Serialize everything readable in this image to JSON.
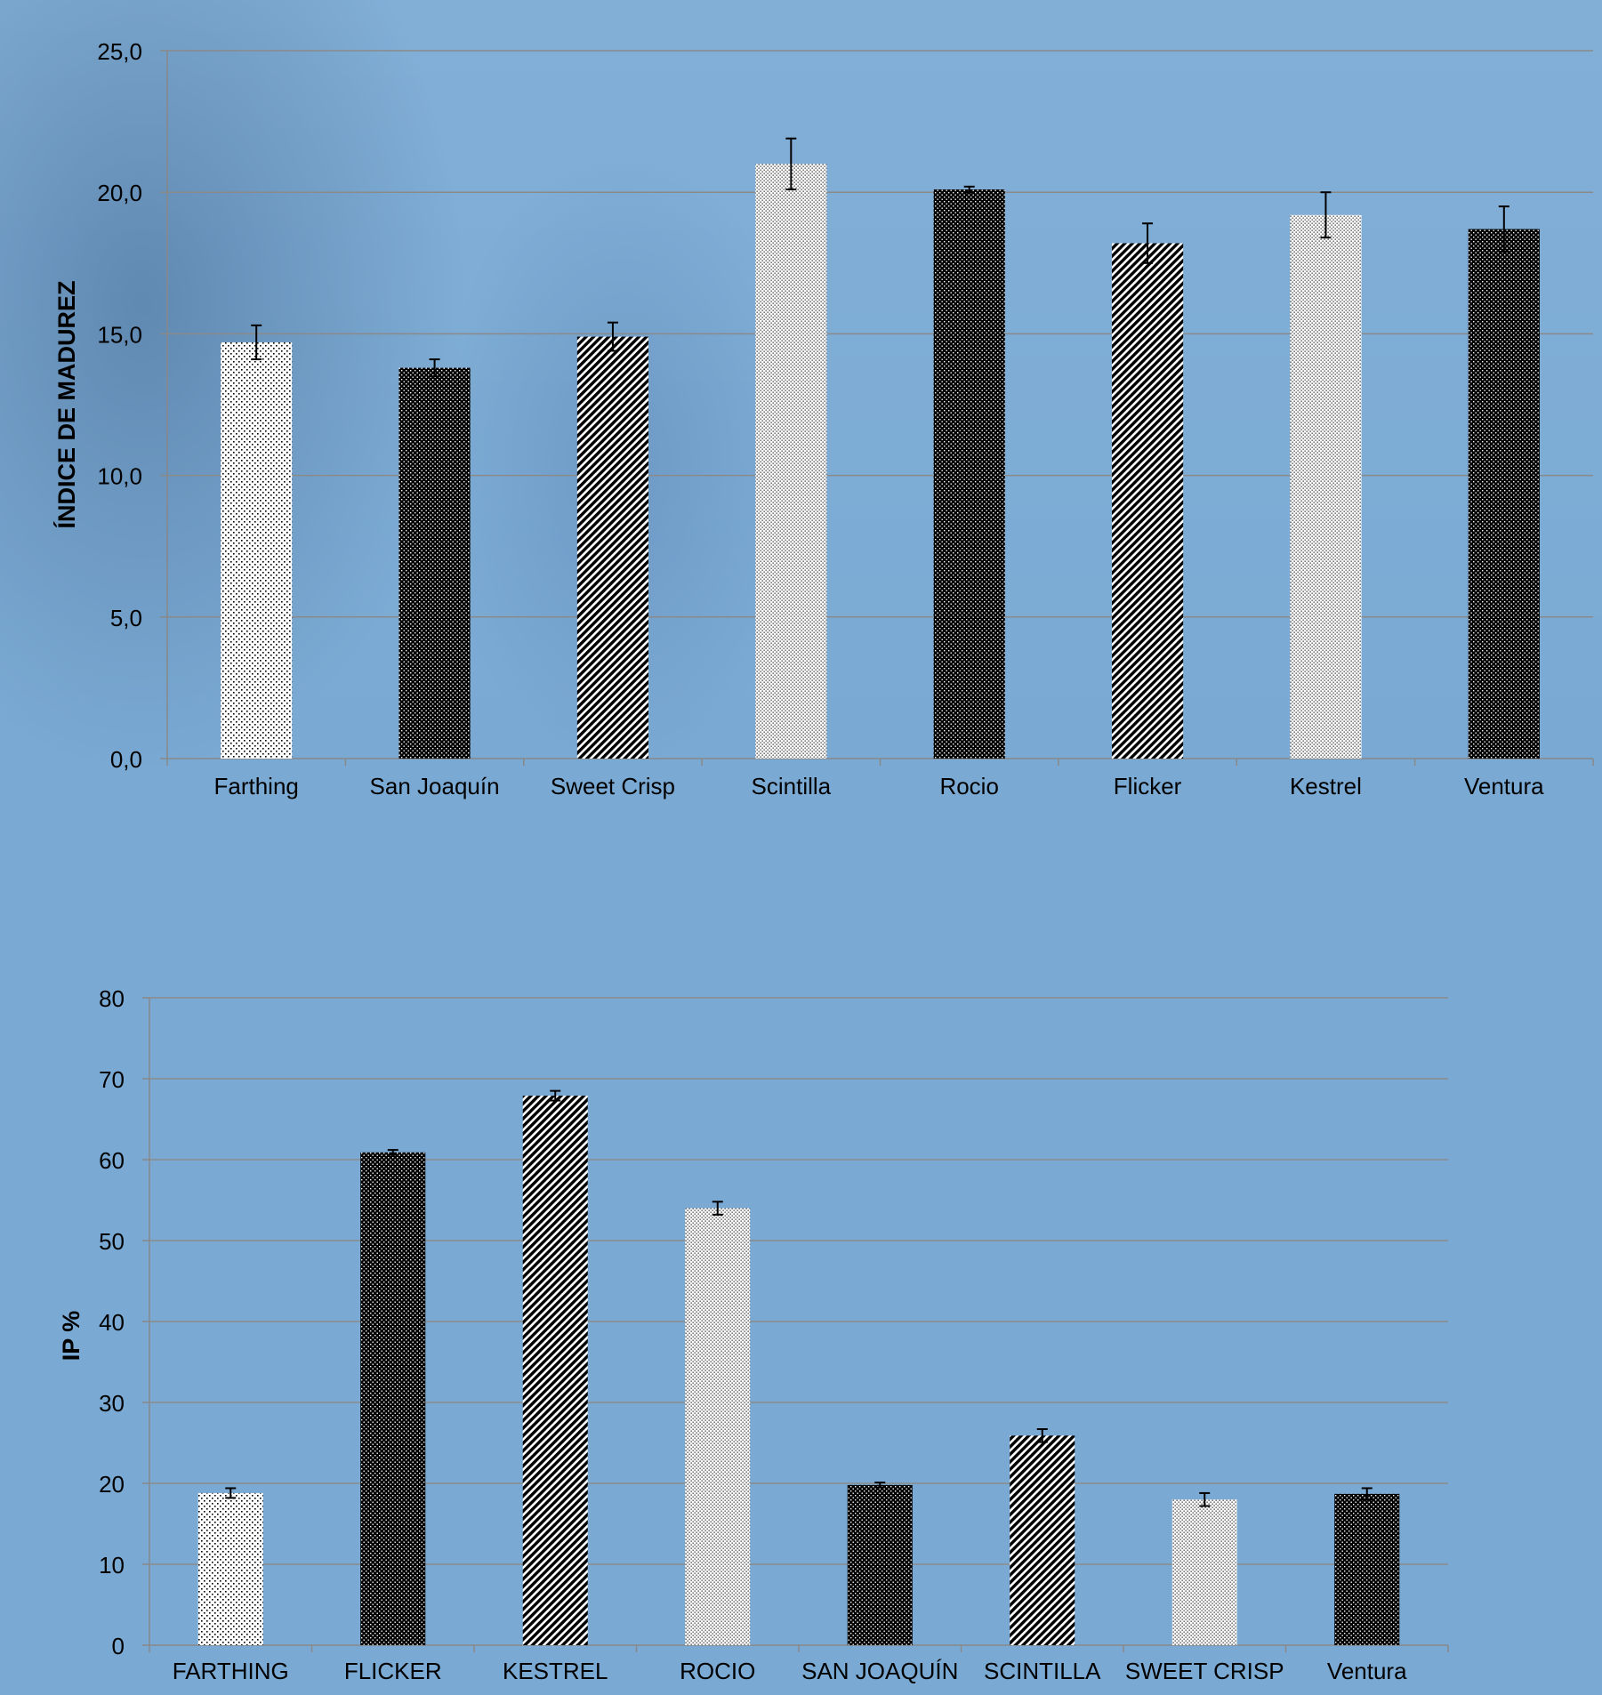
{
  "colors": {
    "background": "#7aaad4",
    "bar_black": "#000000",
    "bar_white": "#ffffff",
    "grid": "#8a8a8a"
  },
  "chart_data": [
    {
      "type": "bar",
      "ylabel": "ÍNDICE DE MADUREZ",
      "xlabel": "",
      "ylim": [
        0,
        25
      ],
      "yticks": [
        "0,0",
        "5,0",
        "10,0",
        "15,0",
        "20,0",
        "25,0"
      ],
      "grid": true,
      "categories": [
        "Farthing",
        "San Joaquín",
        "Sweet Crisp",
        "Scintilla",
        "Rocio",
        "Flicker",
        "Kestrel",
        "Ventura"
      ],
      "values": [
        14.7,
        13.8,
        14.9,
        21.0,
        20.1,
        18.2,
        19.2,
        18.7
      ],
      "errors": [
        0.6,
        0.3,
        0.5,
        0.9,
        0.1,
        0.7,
        0.8,
        0.8
      ],
      "patterns": [
        "dots-sparse",
        "dots-dense",
        "diagonal",
        "dots-fine",
        "dots-dense",
        "diagonal",
        "dots-fine",
        "dots-dense"
      ]
    },
    {
      "type": "bar",
      "ylabel": "IP %",
      "xlabel": "",
      "ylim": [
        0,
        80
      ],
      "yticks": [
        "0",
        "10",
        "20",
        "30",
        "40",
        "50",
        "60",
        "70",
        "80"
      ],
      "grid": true,
      "categories": [
        "FARTHING",
        "FLICKER",
        "KESTREL",
        "ROCIO",
        "SAN JOAQUÍN",
        "SCINTILLA",
        "SWEET CRISP",
        "Ventura"
      ],
      "values": [
        18.8,
        60.9,
        67.9,
        54.0,
        19.8,
        25.9,
        18.0,
        18.7
      ],
      "errors": [
        0.6,
        0.3,
        0.6,
        0.8,
        0.3,
        0.8,
        0.8,
        0.7
      ],
      "patterns": [
        "dots-sparse",
        "dots-dense",
        "diagonal",
        "dots-fine",
        "dots-dense",
        "diagonal",
        "dots-fine",
        "dots-dense"
      ]
    }
  ]
}
